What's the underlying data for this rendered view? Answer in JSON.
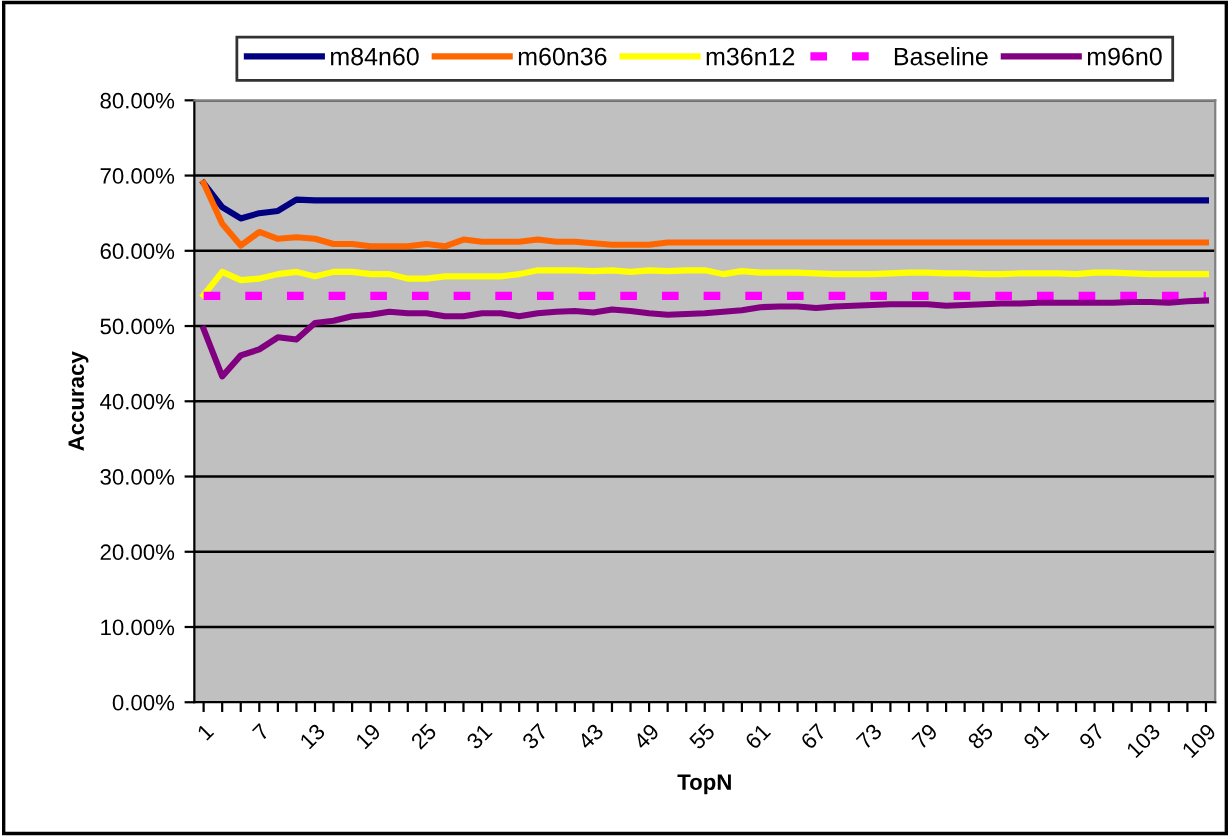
{
  "chart_data": {
    "type": "line",
    "xlabel": "TopN",
    "ylabel": "Accuracy",
    "categories": [
      "1",
      null,
      null,
      "7",
      null,
      null,
      "13",
      null,
      null,
      "19",
      null,
      null,
      "25",
      null,
      null,
      "31",
      null,
      null,
      "37",
      null,
      null,
      "43",
      null,
      null,
      "49",
      null,
      null,
      "55",
      null,
      null,
      "61",
      null,
      null,
      "67",
      null,
      null,
      "73",
      null,
      null,
      "79",
      null,
      null,
      "85",
      null,
      null,
      "91",
      null,
      null,
      "97",
      null,
      null,
      "103",
      null,
      null,
      "109"
    ],
    "series": [
      {
        "name": "m84n60",
        "color": "#000080",
        "values": [
          69,
          65.8,
          64.3,
          65,
          65.3,
          66.8,
          66.7,
          66.7,
          66.7,
          66.7,
          66.7,
          66.7,
          66.7,
          66.7,
          66.7,
          66.7,
          66.7,
          66.7,
          66.7,
          66.7,
          66.7,
          66.7,
          66.7,
          66.7,
          66.7,
          66.7,
          66.7,
          66.7,
          66.7,
          66.7,
          66.7,
          66.7,
          66.7,
          66.7,
          66.7,
          66.7,
          66.7,
          66.7,
          66.7,
          66.7,
          66.7,
          66.7,
          66.7,
          66.7,
          66.7,
          66.7,
          66.7,
          66.7,
          66.7,
          66.7,
          66.7,
          66.7,
          66.7,
          66.7,
          66.7
        ]
      },
      {
        "name": "m60n36",
        "color": "#ff6600",
        "values": [
          69,
          63.6,
          60.7,
          62.5,
          61.6,
          61.8,
          61.6,
          60.9,
          60.9,
          60.6,
          60.6,
          60.6,
          60.9,
          60.6,
          61.5,
          61.2,
          61.2,
          61.2,
          61.5,
          61.2,
          61.2,
          61.0,
          60.8,
          60.8,
          60.8,
          61.1,
          61.1,
          61.1,
          61.1,
          61.1,
          61.1,
          61.1,
          61.1,
          61.1,
          61.1,
          61.1,
          61.1,
          61.1,
          61.1,
          61.1,
          61.1,
          61.1,
          61.1,
          61.1,
          61.1,
          61.1,
          61.1,
          61.1,
          61.1,
          61.1,
          61.1,
          61.1,
          61.1,
          61.1,
          61.1
        ]
      },
      {
        "name": "m36n12",
        "color": "#ffff00",
        "values": [
          54.1,
          57.2,
          56.1,
          56.3,
          56.9,
          57.2,
          56.6,
          57.2,
          57.2,
          56.9,
          56.9,
          56.3,
          56.3,
          56.6,
          56.6,
          56.6,
          56.6,
          56.9,
          57.4,
          57.4,
          57.4,
          57.3,
          57.4,
          57.2,
          57.4,
          57.3,
          57.4,
          57.4,
          56.9,
          57.3,
          57.1,
          57.1,
          57.1,
          57.0,
          56.9,
          56.9,
          56.9,
          57.0,
          57.1,
          57.1,
          57.0,
          57.0,
          56.9,
          56.9,
          57.0,
          57.0,
          57.0,
          56.9,
          57.1,
          57.1,
          57.0,
          56.9,
          56.9,
          56.9,
          56.9
        ]
      },
      {
        "name": "Baseline",
        "color": "#ff00ff",
        "line_style": "dashed",
        "values": [
          54,
          54,
          54,
          54,
          54,
          54,
          54,
          54,
          54,
          54,
          54,
          54,
          54,
          54,
          54,
          54,
          54,
          54,
          54,
          54,
          54,
          54,
          54,
          54,
          54,
          54,
          54,
          54,
          54,
          54,
          54,
          54,
          54,
          54,
          54,
          54,
          54,
          54,
          54,
          54,
          54,
          54,
          54,
          54,
          54,
          54,
          54,
          54,
          54,
          54,
          54,
          54,
          54,
          54,
          54
        ]
      },
      {
        "name": "m96n0",
        "color": "#800080",
        "values": [
          49.6,
          43.3,
          46.1,
          46.9,
          48.5,
          48.2,
          50.4,
          50.7,
          51.3,
          51.5,
          51.9,
          51.7,
          51.7,
          51.3,
          51.3,
          51.7,
          51.7,
          51.3,
          51.7,
          51.9,
          52.0,
          51.8,
          52.2,
          52.0,
          51.7,
          51.5,
          51.6,
          51.7,
          51.9,
          52.1,
          52.5,
          52.6,
          52.6,
          52.4,
          52.6,
          52.7,
          52.8,
          52.9,
          52.9,
          52.9,
          52.7,
          52.8,
          52.9,
          53.0,
          53.0,
          53.1,
          53.1,
          53.1,
          53.1,
          53.1,
          53.2,
          53.2,
          53.1,
          53.3,
          53.4
        ]
      }
    ],
    "ylim": [
      0,
      80
    ],
    "yticks": [
      {
        "value": 0,
        "label": "0.00%"
      },
      {
        "value": 10,
        "label": "10.00%"
      },
      {
        "value": 20,
        "label": "20.00%"
      },
      {
        "value": 30,
        "label": "30.00%"
      },
      {
        "value": 40,
        "label": "40.00%"
      },
      {
        "value": 50,
        "label": "50.00%"
      },
      {
        "value": 60,
        "label": "60.00%"
      },
      {
        "value": 70,
        "label": "70.00%"
      },
      {
        "value": 80,
        "label": "80.00%"
      }
    ],
    "grid": "y",
    "legend": "top"
  }
}
